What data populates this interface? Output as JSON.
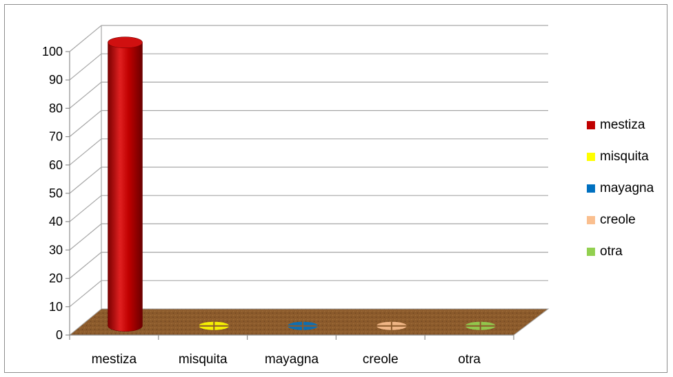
{
  "chart_data": {
    "type": "bar",
    "style": "3d-cylinder",
    "categories": [
      "mestiza",
      "misquita",
      "mayagna",
      "creole",
      "otra"
    ],
    "series": [
      {
        "name": "mestiza",
        "color": "#c00000",
        "values": [
          100,
          0,
          0,
          0,
          0
        ]
      },
      {
        "name": "misquita",
        "color": "#ffff00",
        "values": [
          0,
          0,
          0,
          0,
          0
        ]
      },
      {
        "name": "mayagna",
        "color": "#0070c0",
        "values": [
          0,
          0,
          0,
          0,
          0
        ]
      },
      {
        "name": "creole",
        "color": "#fabf8f",
        "values": [
          0,
          0,
          0,
          0,
          0
        ]
      },
      {
        "name": "otra",
        "color": "#92d050",
        "values": [
          0,
          0,
          0,
          0,
          0
        ]
      }
    ],
    "y_ticks": [
      "0",
      "10",
      "20",
      "30",
      "40",
      "50",
      "60",
      "70",
      "80",
      "90",
      "100"
    ],
    "ylim": [
      0,
      100
    ],
    "grid": true,
    "legend_position": "right",
    "floor_color": "#8b5a2b"
  }
}
